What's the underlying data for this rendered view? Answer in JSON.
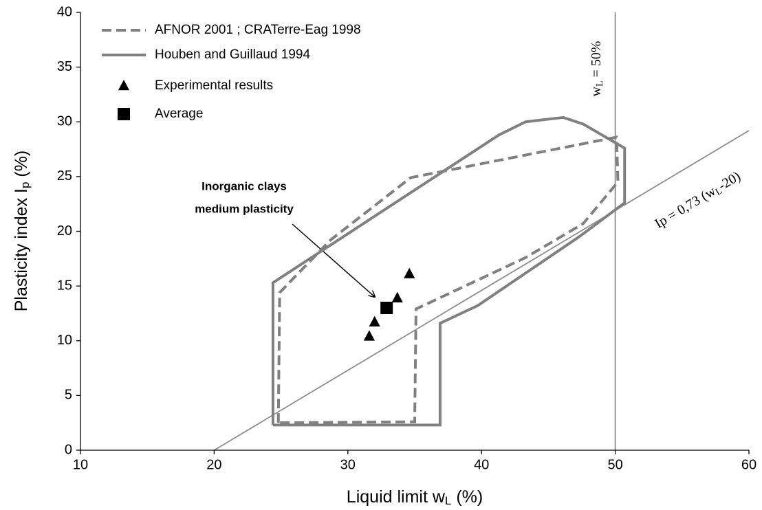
{
  "chart_data": {
    "type": "scatter",
    "xlabel": [
      "Liquid limit w",
      "L",
      " (%)"
    ],
    "ylabel": [
      "Plasticity index I",
      "p",
      " (%)"
    ],
    "xlim": [
      10,
      60
    ],
    "xticks": [
      10,
      20,
      30,
      40,
      50,
      60
    ],
    "ylim": [
      0,
      40
    ],
    "yticks": [
      0,
      5,
      10,
      15,
      20,
      25,
      30,
      35,
      40
    ],
    "legend": "upper left",
    "series": [
      {
        "name": "AFNOR 2001 ; CRATerre-Eag 1998",
        "color": "#808080",
        "style": "dashed",
        "x": [
          24.8,
          24.9,
          28.7,
          34.7,
          50.1,
          50.2,
          47.6,
          43.3,
          35.1,
          35.0,
          24.8
        ],
        "values": [
          2.5,
          14.4,
          19.2,
          24.9,
          28.6,
          24.5,
          20.7,
          17.6,
          12.9,
          2.6,
          2.5
        ]
      },
      {
        "name": "Houben and Guillaud 1994",
        "color": "#808080",
        "style": "solid",
        "x": [
          24.4,
          24.4,
          41.3,
          43.3,
          46.1,
          47.6,
          50.7,
          50.7,
          47.3,
          39.7,
          36.9,
          36.9,
          24.4
        ],
        "values": [
          2.3,
          15.3,
          28.8,
          30.0,
          30.4,
          29.8,
          27.6,
          22.6,
          19.5,
          13.2,
          11.6,
          2.3,
          2.3
        ]
      },
      {
        "name": "Experimental results",
        "color": "#000000",
        "marker": "triangle",
        "x": [
          31.6,
          32.0,
          33.7,
          34.6
        ],
        "values": [
          10.4,
          11.7,
          13.9,
          16.1
        ]
      },
      {
        "name": "Average",
        "color": "#000000",
        "marker": "square",
        "x": [
          32.9
        ],
        "values": [
          13.0
        ]
      }
    ],
    "reference_lines": [
      {
        "color": "#8c8c8c",
        "x": [
          50,
          50
        ],
        "values": [
          0,
          40
        ]
      },
      {
        "color": "#8c8c8c",
        "x": [
          20,
          60
        ],
        "values": [
          0,
          29.2
        ]
      }
    ],
    "annotations": [
      [
        "w",
        "L",
        " = 50%"
      ],
      [
        "Ip = 0,73 (w",
        "L",
        "-20)"
      ],
      [
        "Inorganic clays",
        "medium plasticity"
      ]
    ]
  }
}
